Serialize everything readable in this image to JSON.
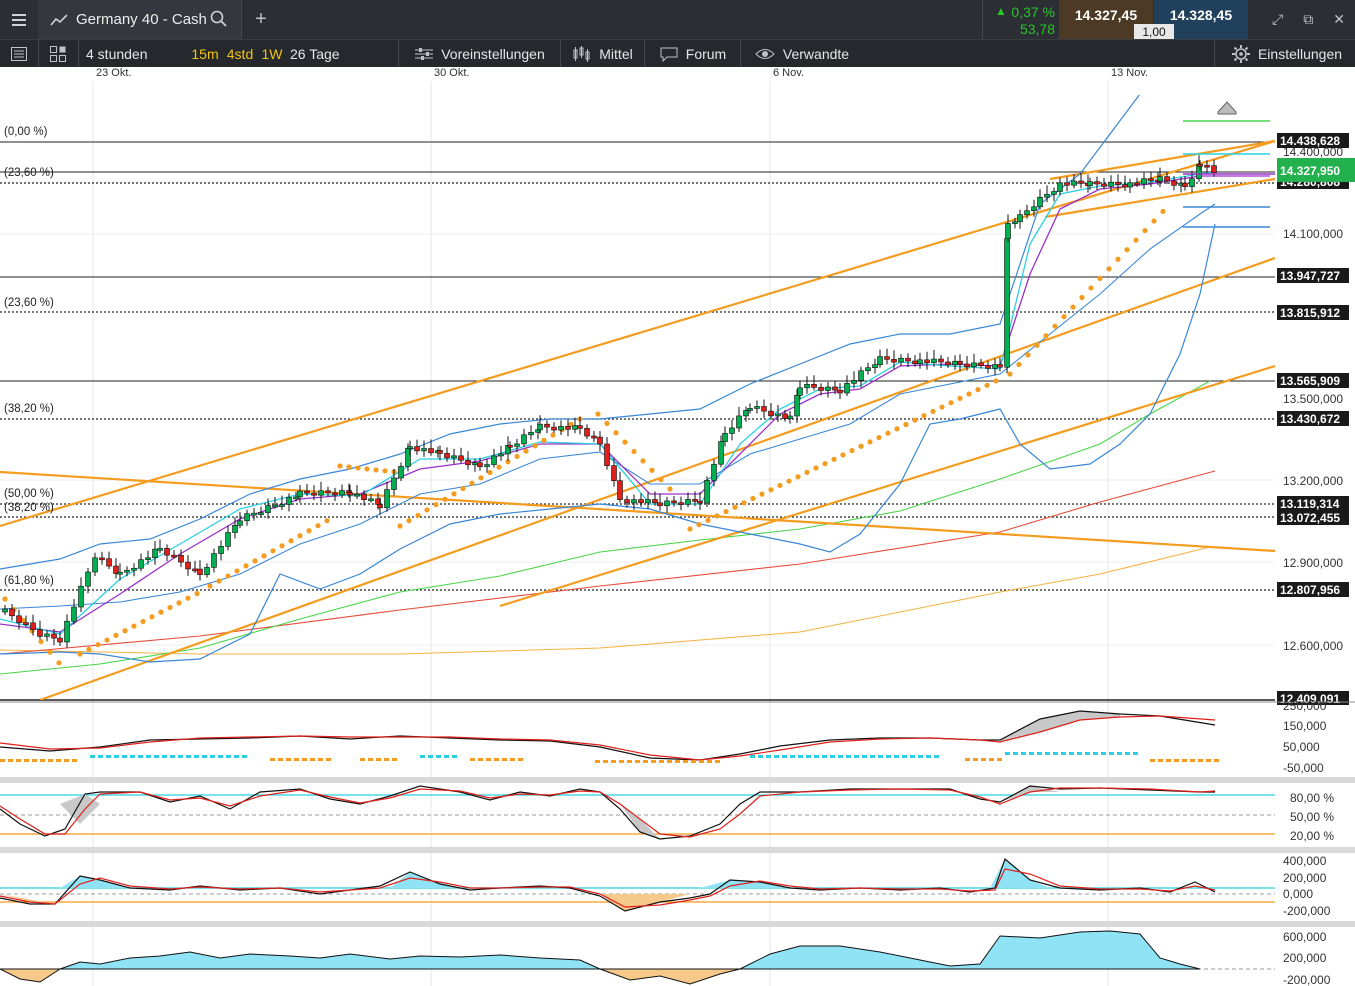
{
  "header": {
    "instrument": "Germany 40 - Cash",
    "change_pct": "0,37 %",
    "change_pts": "53,78",
    "bid": "14.327,45",
    "ask": "14.328,45",
    "spread": "1,00"
  },
  "toolbar": {
    "timeframe": "4 stunden",
    "intervals": [
      "15m",
      "4std",
      "1W"
    ],
    "range": "26 Tage",
    "presets": "Voreinstellungen",
    "indicators": "Mittel",
    "forum": "Forum",
    "related": "Verwandte",
    "settings": "Einstellungen"
  },
  "dates": [
    "23 Okt.",
    "30 Okt.",
    "6 Nov.",
    "13 Nov."
  ],
  "price_axis": [
    "14.400,000",
    "14.100,000",
    "13.500,000",
    "13.200,000",
    "12.900,000",
    "12.600,000"
  ],
  "price_boxes": [
    "14.438,628",
    "14.280,808",
    "13.947,727",
    "13.815,912",
    "13.565,909",
    "13.430,672",
    "13.119,314",
    "13.072,455",
    "12.807,956",
    "12.409,091"
  ],
  "current_price": "14.327,950",
  "fib_labels": [
    "(0,00 %)",
    "(23,60 %)",
    "(23,60 %)",
    "(38,20 %)",
    "(50,00 %)",
    "(38,20 %)",
    "(61,80 %)"
  ],
  "panels": {
    "macd_axis": [
      "250,000",
      "150,000",
      "50,000",
      "-50,000"
    ],
    "stoch_axis": [
      "80,00 %",
      "50,00 %",
      "20,00 %"
    ],
    "cci_axis": [
      "400,000",
      "200,000",
      "0,000",
      "-200,000"
    ],
    "momentum_axis": [
      "600,000",
      "200,000",
      "-200,000"
    ]
  },
  "colors": {
    "up": "#00b050",
    "down": "#e0201a",
    "accent": "#f39c1f",
    "positive": "#29c529"
  }
}
